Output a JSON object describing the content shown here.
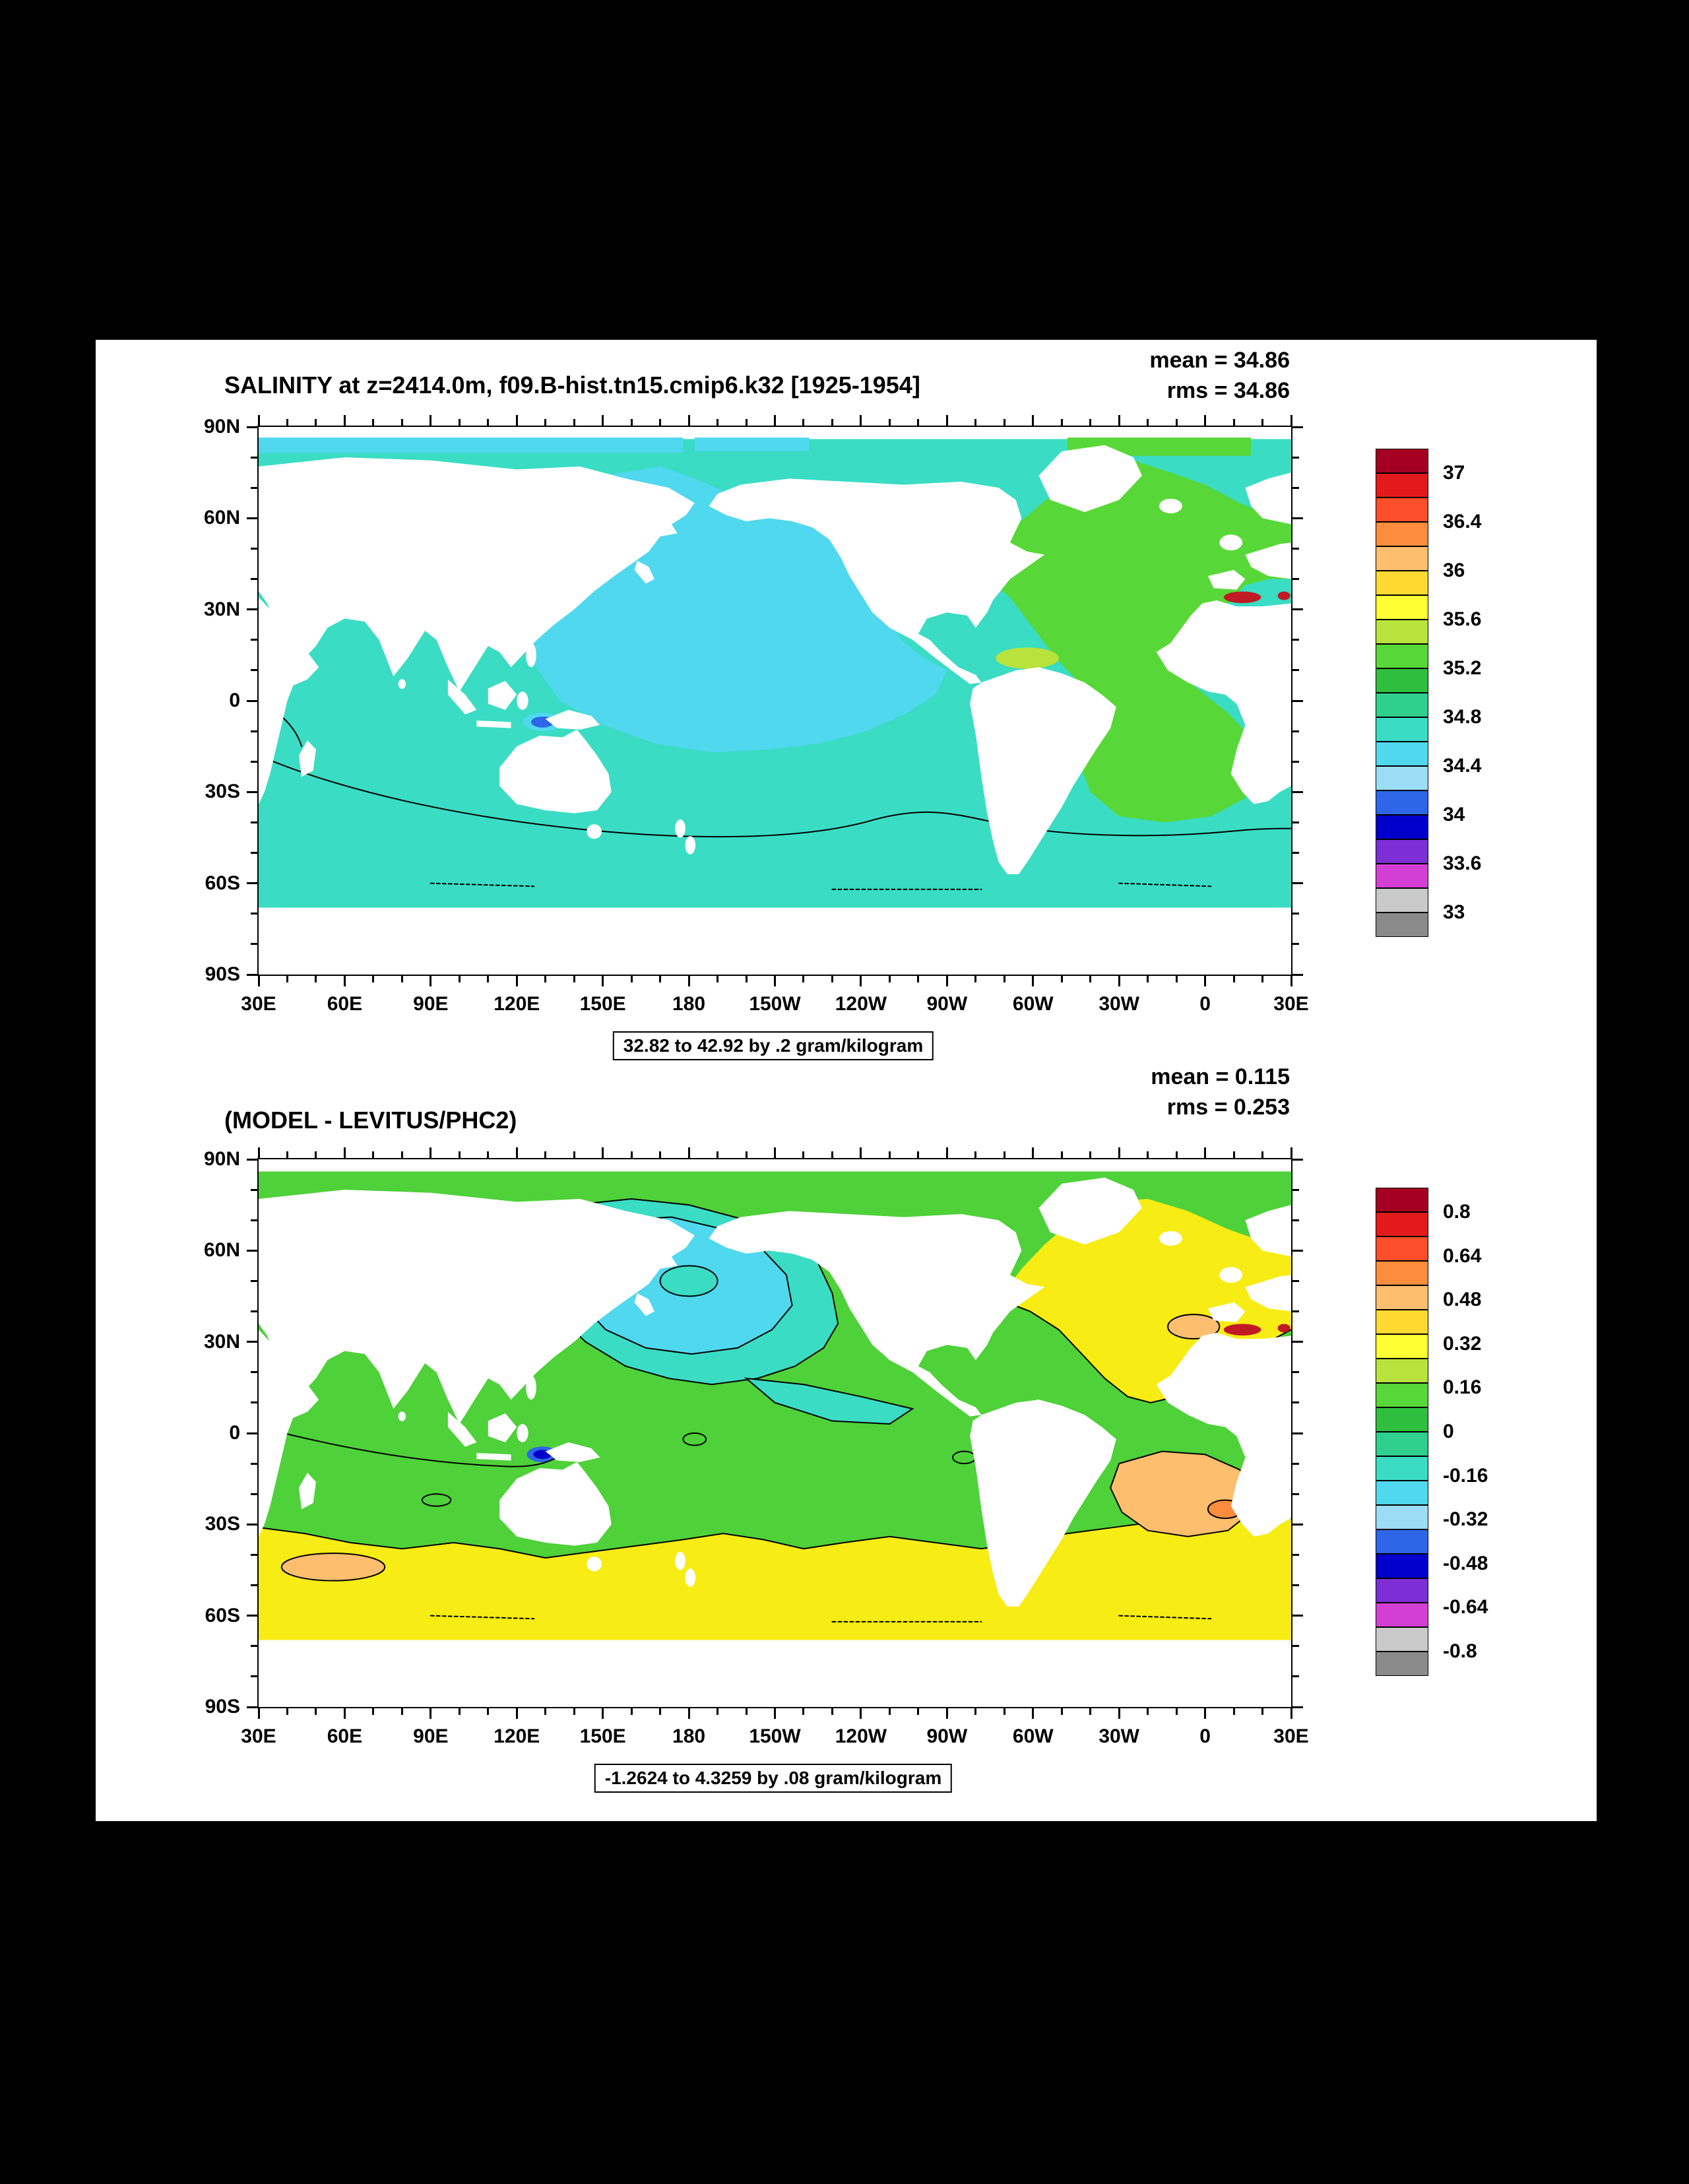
{
  "panel": {
    "page_background": "#000000",
    "plot_background": "#ffffff"
  },
  "axes": {
    "lat_labels": [
      "90N",
      "60N",
      "30N",
      "0",
      "30S",
      "60S",
      "90S"
    ],
    "lon_labels": [
      "30E",
      "60E",
      "90E",
      "120E",
      "150E",
      "180",
      "150W",
      "120W",
      "90W",
      "60W",
      "30W",
      "0",
      "30E"
    ]
  },
  "palette": [
    "#a50021",
    "#e31a1c",
    "#fc4e2a",
    "#fd8d3c",
    "#fdbe6e",
    "#ffd92f",
    "#ffff33",
    "#b8e23c",
    "#58d838",
    "#2fbf3f",
    "#2fcf8e",
    "#3adcc4",
    "#4fd8ee",
    "#9addf5",
    "#2e66e8",
    "#0000cd",
    "#7b2fd4",
    "#d33fd3",
    "#c9c9c9",
    "#8a8a8a"
  ],
  "charts": [
    {
      "title": "SALINITY at z=2414.0m, f09.B-hist.tn15.cmip6.k32 [1925-1954]",
      "mean": "mean = 34.86",
      "rms": "rms = 34.86",
      "caption": "32.82 to 42.92 by .2 gram/kilogram",
      "colorbar_labels": [
        "37",
        "36.4",
        "36",
        "35.6",
        "35.2",
        "34.8",
        "34.4",
        "34",
        "33.6",
        "33"
      ]
    },
    {
      "title": "(MODEL - LEVITUS/PHC2)",
      "mean": "mean = 0.115",
      "rms": "rms = 0.253",
      "caption": "-1.2624 to 4.3259 by .08 gram/kilogram",
      "colorbar_labels": [
        "0.8",
        "0.64",
        "0.48",
        "0.32",
        "0.16",
        "0",
        "-0.16",
        "-0.32",
        "-0.48",
        "-0.64",
        "-0.8"
      ]
    }
  ],
  "chart_data": [
    {
      "type": "heatmap",
      "title": "SALINITY at z=2414.0m, f09.B-hist.tn15.cmip6.k32 [1925-1954]",
      "variable": "SALINITY",
      "depth": "z=2414.0m",
      "case": "f09.B-hist.tn15.cmip6.k32",
      "period": "[1925-1954]",
      "units": "gram/kilogram",
      "data_min": 32.82,
      "data_max": 42.92,
      "contour_interval": 0.2,
      "mean": 34.86,
      "rms": 34.86,
      "colorbar_tick_values": [
        37,
        36.4,
        36,
        35.6,
        35.2,
        34.8,
        34.4,
        34,
        33.6,
        33
      ],
      "x_axis": {
        "labels": [
          "30E",
          "60E",
          "90E",
          "120E",
          "150E",
          "180",
          "150W",
          "120W",
          "90W",
          "60W",
          "30W",
          "0",
          "30E"
        ],
        "range_deg": 360
      },
      "y_axis": {
        "labels": [
          "90N",
          "60N",
          "30N",
          "0",
          "30S",
          "60S",
          "90S"
        ]
      },
      "legend_position": "right",
      "grid": false,
      "regions": [
        {
          "region": "North and central Pacific",
          "approx_salinity": 34.5
        },
        {
          "region": "Indian Ocean and Southern Ocean",
          "approx_salinity": 34.7
        },
        {
          "region": "Atlantic Ocean",
          "approx_salinity": 35.0
        },
        {
          "region": "Caribbean / tropical west Atlantic patch",
          "approx_salinity": 35.3
        },
        {
          "region": "Mediterranean outflow",
          "approx_salinity": 36.9
        },
        {
          "region": "Banda Sea patch",
          "approx_salinity": 34.0
        }
      ]
    },
    {
      "type": "heatmap",
      "title": "(MODEL - LEVITUS/PHC2)",
      "variable": "SALINITY bias (model minus observations)",
      "units": "gram/kilogram",
      "data_min": -1.2624,
      "data_max": 4.3259,
      "contour_interval": 0.08,
      "mean": 0.115,
      "rms": 0.253,
      "colorbar_tick_values": [
        0.8,
        0.64,
        0.48,
        0.32,
        0.16,
        0,
        -0.16,
        -0.32,
        -0.48,
        -0.64,
        -0.8
      ],
      "x_axis": {
        "labels": [
          "30E",
          "60E",
          "90E",
          "120E",
          "150E",
          "180",
          "150W",
          "120W",
          "90W",
          "60W",
          "30W",
          "0",
          "30E"
        ],
        "range_deg": 360
      },
      "y_axis": {
        "labels": [
          "90N",
          "60N",
          "30N",
          "0",
          "30S",
          "60S",
          "90S"
        ]
      },
      "legend_position": "right",
      "grid": false,
      "regions": [
        {
          "region": "North Pacific core",
          "approx_bias": -0.25
        },
        {
          "region": "Mid and low latitude oceans",
          "approx_bias": 0.08
        },
        {
          "region": "Southern Ocean and North Atlantic",
          "approx_bias": 0.2
        },
        {
          "region": "South Atlantic patches",
          "approx_bias": 0.4
        },
        {
          "region": "Mediterranean outflow",
          "approx_bias": 0.8
        },
        {
          "region": "Banda Sea patch",
          "approx_bias": -0.5
        }
      ]
    }
  ]
}
